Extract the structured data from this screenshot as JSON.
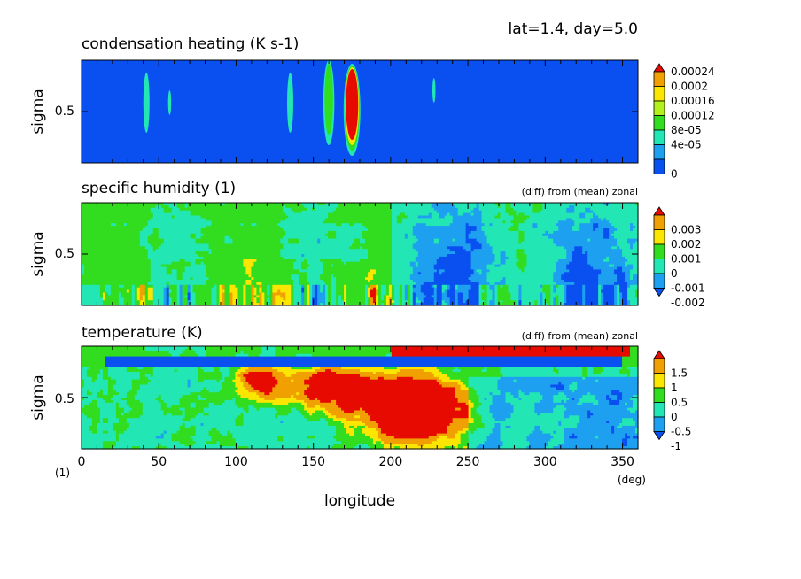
{
  "header": {
    "label": "lat=1.4, day=5.0"
  },
  "colors": {
    "blue": "#0a50f0",
    "lightblue": "#1ea0f0",
    "cyan": "#22e6b4",
    "green": "#32dc1e",
    "lightgreen": "#b4f01e",
    "yellow": "#fae600",
    "orange": "#f0a000",
    "red": "#e60a00"
  },
  "chart_data": [
    {
      "type": "heatmap",
      "title": "condensation heating (K s-1)",
      "subtitle": "",
      "ylabel": "sigma",
      "ytick_labels": [
        "0.5"
      ],
      "xlim": [
        0,
        360
      ],
      "ylim": [
        0,
        1
      ],
      "colorbar": {
        "levels": [
          "0.00024",
          "0.0002",
          "0.00016",
          "0.00012",
          "8e-05",
          "4e-05",
          "0"
        ],
        "colors": [
          "#e60a00",
          "#f0a000",
          "#fae600",
          "#b4f01e",
          "#32dc1e",
          "#22e6b4",
          "#1ea0f0",
          "#0a50f0"
        ]
      },
      "features": [
        {
          "lon": 42,
          "width": 2,
          "level": "cyan"
        },
        {
          "lon": 57,
          "width": 1,
          "level": "cyan"
        },
        {
          "lon": 135,
          "width": 2,
          "level": "cyan"
        },
        {
          "lon": 160,
          "width": 3,
          "level": "green"
        },
        {
          "lon": 175,
          "width": 4,
          "level": "red"
        },
        {
          "lon": 228,
          "width": 1,
          "level": "cyan"
        }
      ]
    },
    {
      "type": "heatmap",
      "title": "specific humidity (1)",
      "subtitle": "(diff) from (mean) zonal",
      "ylabel": "sigma",
      "ytick_labels": [
        "0.5"
      ],
      "xlim": [
        0,
        360
      ],
      "ylim": [
        0,
        1
      ],
      "colorbar": {
        "levels": [
          "0.003",
          "0.002",
          "0.001",
          "0",
          "-0.001",
          "-0.002"
        ],
        "colors": [
          "#e60a00",
          "#f0a000",
          "#fae600",
          "#32dc1e",
          "#22e6b4",
          "#1ea0f0",
          "#0a50f0"
        ]
      }
    },
    {
      "type": "heatmap",
      "title": "temperature (K)",
      "subtitle": "(diff) from (mean) zonal",
      "ylabel": "sigma",
      "ytick_labels": [
        "0.5"
      ],
      "xlabel": "longitude",
      "xtick_labels": [
        "0",
        "50",
        "100",
        "150",
        "200",
        "250",
        "300",
        "350"
      ],
      "xticks": [
        0,
        50,
        100,
        150,
        200,
        250,
        300,
        350
      ],
      "x_unit": "(deg)",
      "y_unit": "(1)",
      "xlim": [
        0,
        360
      ],
      "ylim": [
        0,
        1
      ],
      "colorbar": {
        "levels": [
          "1.5",
          "1",
          "0.5",
          "0",
          "-0.5",
          "-1"
        ],
        "colors": [
          "#e60a00",
          "#f0a000",
          "#fae600",
          "#32dc1e",
          "#22e6b4",
          "#1ea0f0",
          "#0a50f0"
        ]
      }
    }
  ]
}
